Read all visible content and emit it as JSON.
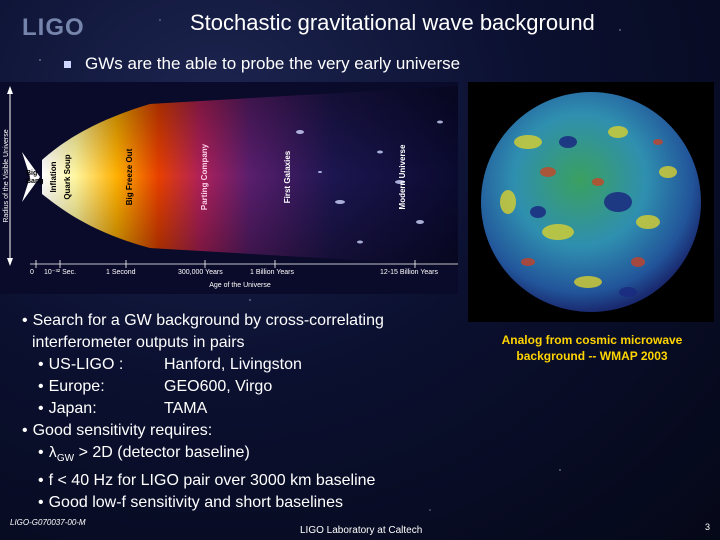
{
  "logo": "LIGO",
  "title": "Stochastic gravitational wave background",
  "subtitle": "GWs are the able to probe the very early universe",
  "greek": {
    "g": "g",
    "nu": "ν",
    "gamma": "γ"
  },
  "timeline": {
    "y_axis_label": "Radius of the Visible Universe",
    "big_bang": [
      "Big",
      "Bang"
    ],
    "eras": [
      "Inflation",
      "Quark Soup",
      "Big Freeze Out",
      "Parting Company",
      "First Galaxies",
      "Modern Universe"
    ],
    "ticks": [
      "0",
      "10⁻³² Sec.",
      "1 Second",
      "300,000 Years",
      "1 Billion Years",
      "12-15 Billion Years"
    ],
    "x_axis_label": "Age of the Universe"
  },
  "wmap_caption": [
    "Analog from cosmic microwave",
    "background -- WMAP 2003"
  ],
  "bullets": {
    "b1_line1": "Search for a GW background by cross-correlating",
    "b1_line2": "interferometer outputs in pairs",
    "us_label": "US-LIGO :",
    "us_value": "Hanford, Livingston",
    "eu_label": "Europe:",
    "eu_value": "GEO600, Virgo",
    "jp_label": "Japan:",
    "jp_value": "TAMA",
    "b2": "Good sensitivity requires:",
    "lambda_sym": "λ",
    "lambda_sub": "GW",
    "lambda_rest": " > 2D (detector baseline)",
    "f_text": "f < 40 Hz for LIGO pair over 3000 km baseline",
    "lowf_text": "Good low-f sensitivity and short baselines",
    "dot": "•"
  },
  "footer": {
    "doc_id": "LIGO-G070037-00-M",
    "lab": "LIGO Laboratory at Caltech",
    "page": "3"
  }
}
